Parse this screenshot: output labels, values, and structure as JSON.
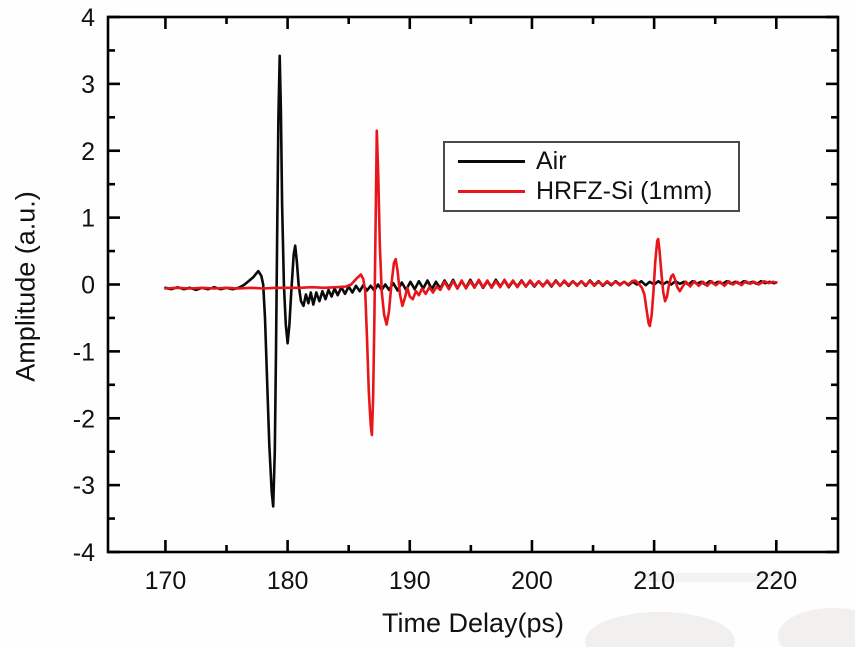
{
  "chart_data": {
    "type": "line",
    "title": "",
    "xlabel": "Time Delay(ps)",
    "ylabel": "Amplitude (a.u.)",
    "xlim": [
      165.3,
      225.05
    ],
    "ylim": [
      -4,
      4
    ],
    "grid": false,
    "legend_position": "upper-center-right",
    "x_major_ticks": [
      170,
      180,
      190,
      200,
      210,
      220
    ],
    "x_minor_ticks": [
      175,
      185,
      195,
      205,
      215
    ],
    "y_major_ticks": [
      -4,
      -3,
      -2,
      -1,
      0,
      1,
      2,
      3,
      4
    ],
    "y_minor_ticks": [
      -3.5,
      -2.5,
      -1.5,
      -0.5,
      0.5,
      1.5,
      2.5,
      3.5
    ],
    "axis_color": "#000000",
    "series": [
      {
        "name": "Air",
        "color": "#0a0a0a",
        "main_peak_ps": 179.35,
        "peak_amplitude": 3.42,
        "trough_amplitude": -3.32,
        "points": [
          [
            170,
            -0.05
          ],
          [
            170.5,
            -0.07
          ],
          [
            171,
            -0.04
          ],
          [
            171.5,
            -0.07
          ],
          [
            172,
            -0.05
          ],
          [
            172.5,
            -0.08
          ],
          [
            173,
            -0.05
          ],
          [
            173.5,
            -0.07
          ],
          [
            174,
            -0.04
          ],
          [
            174.5,
            -0.07
          ],
          [
            175,
            -0.05
          ],
          [
            175.5,
            -0.07
          ],
          [
            176,
            -0.05
          ],
          [
            176.4,
            -0.01
          ],
          [
            176.8,
            0.05
          ],
          [
            177.2,
            0.11
          ],
          [
            177.6,
            0.2
          ],
          [
            177.85,
            0.13
          ],
          [
            178,
            0
          ],
          [
            178.15,
            -0.5
          ],
          [
            178.3,
            -1.3
          ],
          [
            178.5,
            -2.4
          ],
          [
            178.7,
            -3.1
          ],
          [
            178.82,
            -3.32
          ],
          [
            178.95,
            -2.5
          ],
          [
            179.05,
            -1
          ],
          [
            179.15,
            0.8
          ],
          [
            179.25,
            2.5
          ],
          [
            179.35,
            3.42
          ],
          [
            179.45,
            2.6
          ],
          [
            179.55,
            1.2
          ],
          [
            179.7,
            0
          ],
          [
            179.85,
            -0.6
          ],
          [
            180,
            -0.88
          ],
          [
            180.15,
            -0.6
          ],
          [
            180.3,
            -0.1
          ],
          [
            180.5,
            0.45
          ],
          [
            180.62,
            0.58
          ],
          [
            180.75,
            0.35
          ],
          [
            180.9,
            0
          ],
          [
            181.1,
            -0.25
          ],
          [
            181.3,
            -0.32
          ],
          [
            181.5,
            -0.15
          ],
          [
            181.7,
            -0.28
          ],
          [
            181.9,
            -0.12
          ],
          [
            182.1,
            -0.3
          ],
          [
            182.35,
            -0.12
          ],
          [
            182.6,
            -0.25
          ],
          [
            182.85,
            -0.1
          ],
          [
            183.1,
            -0.22
          ],
          [
            183.35,
            -0.08
          ],
          [
            183.6,
            -0.18
          ],
          [
            183.85,
            -0.06
          ],
          [
            184.1,
            -0.16
          ],
          [
            184.4,
            -0.04
          ],
          [
            184.7,
            -0.14
          ],
          [
            185,
            -0.03
          ],
          [
            185.3,
            -0.12
          ],
          [
            185.6,
            -0.02
          ],
          [
            185.9,
            -0.1
          ],
          [
            186.2,
            -0.01
          ],
          [
            186.5,
            -0.09
          ],
          [
            186.8,
            -0.02
          ],
          [
            187.1,
            -0.09
          ],
          [
            187.4,
            0
          ],
          [
            187.7,
            -0.08
          ],
          [
            188,
            0
          ],
          [
            188.3,
            -0.08
          ],
          [
            188.65,
            0.02
          ],
          [
            189,
            -0.09
          ],
          [
            189.35,
            0.03
          ],
          [
            189.7,
            -0.08
          ],
          [
            190.05,
            0.04
          ],
          [
            190.4,
            -0.07
          ],
          [
            190.75,
            0.05
          ],
          [
            191.1,
            -0.06
          ],
          [
            191.45,
            0.06
          ],
          [
            191.8,
            -0.07
          ],
          [
            192.15,
            0.04
          ],
          [
            192.5,
            -0.06
          ],
          [
            192.85,
            0.06
          ],
          [
            193.2,
            -0.05
          ],
          [
            193.55,
            0.07
          ],
          [
            193.9,
            -0.06
          ],
          [
            194.25,
            0.05
          ],
          [
            194.6,
            -0.05
          ],
          [
            194.95,
            0.07
          ],
          [
            195.3,
            -0.04
          ],
          [
            195.65,
            0.06
          ],
          [
            196,
            -0.05
          ],
          [
            196.35,
            0.05
          ],
          [
            196.7,
            -0.04
          ],
          [
            197.05,
            0.07
          ],
          [
            197.4,
            -0.03
          ],
          [
            197.75,
            0.06
          ],
          [
            198.1,
            -0.04
          ],
          [
            198.45,
            0.05
          ],
          [
            198.8,
            -0.03
          ],
          [
            199.15,
            0.06
          ],
          [
            199.5,
            -0.03
          ],
          [
            199.85,
            0.05
          ],
          [
            200.2,
            -0.03
          ],
          [
            200.55,
            0.05
          ],
          [
            200.9,
            -0.02
          ],
          [
            201.25,
            0.05
          ],
          [
            201.6,
            -0.03
          ],
          [
            201.95,
            0.06
          ],
          [
            202.3,
            -0.02
          ],
          [
            202.65,
            0.05
          ],
          [
            203,
            -0.02
          ],
          [
            203.35,
            0.05
          ],
          [
            203.7,
            -0.01
          ],
          [
            204.05,
            0.05
          ],
          [
            204.4,
            -0.02
          ],
          [
            204.75,
            0.06
          ],
          [
            205.1,
            -0.01
          ],
          [
            205.45,
            0.05
          ],
          [
            205.8,
            -0.02
          ],
          [
            206.15,
            0.04
          ],
          [
            206.5,
            -0.01
          ],
          [
            206.85,
            0.05
          ],
          [
            207.2,
            0
          ],
          [
            207.55,
            0.04
          ],
          [
            207.9,
            -0.01
          ],
          [
            208.25,
            0.04
          ],
          [
            208.6,
            0
          ],
          [
            208.95,
            0.05
          ],
          [
            209.3,
            -0.01
          ],
          [
            209.65,
            0.04
          ],
          [
            210,
            0
          ],
          [
            210.35,
            0.05
          ],
          [
            210.7,
            0
          ],
          [
            211.05,
            0.04
          ],
          [
            211.4,
            0
          ],
          [
            211.75,
            0.05
          ],
          [
            212.1,
            0.01
          ],
          [
            212.45,
            0.04
          ],
          [
            212.8,
            0
          ],
          [
            213.15,
            0.05
          ],
          [
            213.5,
            0.01
          ],
          [
            213.85,
            0.04
          ],
          [
            214.2,
            0
          ],
          [
            214.55,
            0.05
          ],
          [
            214.9,
            0.01
          ],
          [
            215.25,
            0.04
          ],
          [
            215.6,
            0.01
          ],
          [
            215.95,
            0.05
          ],
          [
            216.3,
            0.01
          ],
          [
            216.65,
            0.04
          ],
          [
            217,
            0.01
          ],
          [
            217.35,
            0.05
          ],
          [
            217.7,
            0.02
          ],
          [
            218.05,
            0.04
          ],
          [
            218.4,
            0.01
          ],
          [
            218.75,
            0.05
          ],
          [
            219.1,
            0.02
          ],
          [
            219.45,
            0.04
          ],
          [
            219.8,
            0.02
          ],
          [
            220,
            0.03
          ]
        ]
      },
      {
        "name": "HRFZ-Si (1mm)",
        "color": "#e8151b",
        "main_peak_ps": 187.3,
        "peak_amplitude": 2.3,
        "trough_amplitude": -2.25,
        "echo_peak_ps": 210.33,
        "echo_amplitude": 0.68,
        "points": [
          [
            170,
            -0.06
          ],
          [
            171,
            -0.05
          ],
          [
            172,
            -0.06
          ],
          [
            173,
            -0.05
          ],
          [
            174,
            -0.06
          ],
          [
            175,
            -0.05
          ],
          [
            176,
            -0.06
          ],
          [
            177,
            -0.05
          ],
          [
            178,
            -0.06
          ],
          [
            179,
            -0.05
          ],
          [
            180,
            -0.05
          ],
          [
            181,
            -0.05
          ],
          [
            182,
            -0.04
          ],
          [
            183,
            -0.05
          ],
          [
            184,
            -0.04
          ],
          [
            184.8,
            -0.03
          ],
          [
            185.2,
            0
          ],
          [
            185.6,
            0.08
          ],
          [
            186,
            0.15
          ],
          [
            186.2,
            0.08
          ],
          [
            186.35,
            -0.1
          ],
          [
            186.5,
            -0.8
          ],
          [
            186.65,
            -1.6
          ],
          [
            186.8,
            -2.1
          ],
          [
            186.9,
            -2.25
          ],
          [
            187,
            -1.7
          ],
          [
            187.1,
            -0.6
          ],
          [
            187.2,
            0.9
          ],
          [
            187.3,
            2.3
          ],
          [
            187.42,
            1.6
          ],
          [
            187.55,
            0.6
          ],
          [
            187.7,
            -0.1
          ],
          [
            187.9,
            -0.45
          ],
          [
            188.1,
            -0.6
          ],
          [
            188.3,
            -0.4
          ],
          [
            188.5,
            0
          ],
          [
            188.7,
            0.32
          ],
          [
            188.85,
            0.38
          ],
          [
            189,
            0.2
          ],
          [
            189.2,
            -0.15
          ],
          [
            189.4,
            -0.32
          ],
          [
            189.6,
            -0.2
          ],
          [
            189.8,
            -0.05
          ],
          [
            190,
            -0.18
          ],
          [
            190.25,
            -0.22
          ],
          [
            190.5,
            -0.1
          ],
          [
            190.75,
            -0.16
          ],
          [
            191,
            -0.06
          ],
          [
            191.3,
            -0.14
          ],
          [
            191.6,
            -0.04
          ],
          [
            191.9,
            -0.12
          ],
          [
            192.2,
            -0.03
          ],
          [
            192.5,
            -0.08
          ],
          [
            192.85,
            0.04
          ],
          [
            193.2,
            -0.07
          ],
          [
            193.55,
            0.05
          ],
          [
            193.9,
            -0.06
          ],
          [
            194.25,
            0.06
          ],
          [
            194.6,
            -0.06
          ],
          [
            194.95,
            0.05
          ],
          [
            195.3,
            -0.05
          ],
          [
            195.65,
            0.07
          ],
          [
            196,
            -0.04
          ],
          [
            196.35,
            0.06
          ],
          [
            196.7,
            -0.05
          ],
          [
            197.05,
            0.05
          ],
          [
            197.4,
            -0.04
          ],
          [
            197.75,
            0.07
          ],
          [
            198.1,
            -0.03
          ],
          [
            198.45,
            0.06
          ],
          [
            198.8,
            -0.04
          ],
          [
            199.15,
            0.05
          ],
          [
            199.5,
            -0.03
          ],
          [
            199.85,
            0.06
          ],
          [
            200.2,
            -0.02
          ],
          [
            200.55,
            0.05
          ],
          [
            200.9,
            -0.03
          ],
          [
            201.25,
            0.06
          ],
          [
            201.6,
            -0.02
          ],
          [
            201.95,
            0.05
          ],
          [
            202.3,
            -0.02
          ],
          [
            202.65,
            0.06
          ],
          [
            203,
            -0.01
          ],
          [
            203.35,
            0.05
          ],
          [
            203.7,
            -0.02
          ],
          [
            204.05,
            0.05
          ],
          [
            204.4,
            -0.01
          ],
          [
            204.75,
            0.05
          ],
          [
            205.1,
            -0.02
          ],
          [
            205.45,
            0.04
          ],
          [
            205.8,
            -0.01
          ],
          [
            206.15,
            0.05
          ],
          [
            206.5,
            0
          ],
          [
            206.85,
            0.04
          ],
          [
            207.2,
            -0.01
          ],
          [
            207.55,
            0.04
          ],
          [
            207.9,
            0
          ],
          [
            208.2,
            0.05
          ],
          [
            208.45,
            0.06
          ],
          [
            208.7,
            0.02
          ],
          [
            209,
            -0.05
          ],
          [
            209.2,
            -0.15
          ],
          [
            209.4,
            -0.4
          ],
          [
            209.55,
            -0.58
          ],
          [
            209.65,
            -0.62
          ],
          [
            209.8,
            -0.45
          ],
          [
            209.95,
            -0.1
          ],
          [
            210.1,
            0.35
          ],
          [
            210.25,
            0.65
          ],
          [
            210.33,
            0.68
          ],
          [
            210.45,
            0.5
          ],
          [
            210.6,
            0.15
          ],
          [
            210.75,
            -0.12
          ],
          [
            210.9,
            -0.25
          ],
          [
            211.05,
            -0.18
          ],
          [
            211.2,
            -0.02
          ],
          [
            211.4,
            0.12
          ],
          [
            211.55,
            0.15
          ],
          [
            211.7,
            0.08
          ],
          [
            211.9,
            -0.04
          ],
          [
            212.1,
            -0.1
          ],
          [
            212.3,
            -0.04
          ],
          [
            212.6,
            0.04
          ],
          [
            212.95,
            -0.03
          ],
          [
            213.3,
            0.05
          ],
          [
            213.65,
            -0.02
          ],
          [
            214,
            0.04
          ],
          [
            214.35,
            -0.02
          ],
          [
            214.7,
            0.05
          ],
          [
            215.05,
            -0.01
          ],
          [
            215.4,
            0.04
          ],
          [
            215.75,
            -0.02
          ],
          [
            216.1,
            0.05
          ],
          [
            216.45,
            0
          ],
          [
            216.8,
            0.04
          ],
          [
            217.15,
            -0.01
          ],
          [
            217.5,
            0.05
          ],
          [
            217.85,
            0.01
          ],
          [
            218.2,
            0.04
          ],
          [
            218.55,
            0
          ],
          [
            219,
            0.05
          ],
          [
            219.4,
            0.02
          ],
          [
            219.7,
            0.04
          ],
          [
            220,
            0.03
          ]
        ]
      }
    ]
  },
  "legend": {
    "items": [
      {
        "label": "Air",
        "color": "#0a0a0a"
      },
      {
        "label": "HRFZ-Si (1mm)",
        "color": "#e8151b"
      }
    ]
  }
}
